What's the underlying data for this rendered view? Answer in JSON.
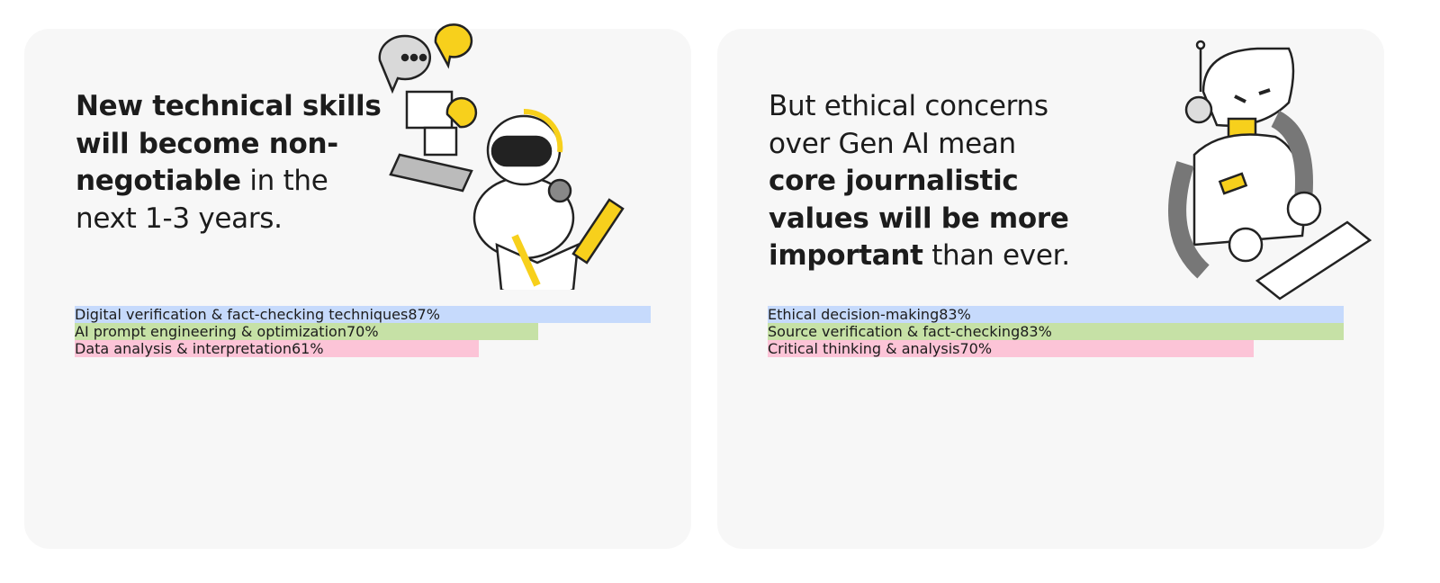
{
  "chart_data": [
    {
      "type": "bar",
      "orientation": "horizontal",
      "title_parts": [
        {
          "text": "New technical skills will become non-negotiable",
          "bold": true
        },
        {
          "text": "in the next 1-3 years.",
          "bold": false
        }
      ],
      "categories": [
        "Digital verification & fact-checking techniques",
        "AI prompt engineering & optimization",
        "Data analysis & interpretation"
      ],
      "values": [
        87,
        70,
        61
      ],
      "value_labels": [
        "87%",
        "70%",
        "61%"
      ],
      "colors": [
        "#c6dafc",
        "#c6e1a6",
        "#fcc4d7"
      ]
    },
    {
      "type": "bar",
      "orientation": "horizontal",
      "title_parts": [
        {
          "text": "But ethical concerns over Gen AI mean",
          "bold": false
        },
        {
          "text": "core journalistic values will be more important",
          "bold": true
        },
        {
          "text": "than ever.",
          "bold": false
        }
      ],
      "categories": [
        "Ethical decision-making",
        "Source verification & fact-checking",
        "Critical thinking & analysis"
      ],
      "values": [
        83,
        83,
        70
      ],
      "value_labels": [
        "83%",
        "83%",
        "70%"
      ],
      "colors": [
        "#c6dafc",
        "#c6e1a6",
        "#fcc4d7"
      ]
    }
  ]
}
